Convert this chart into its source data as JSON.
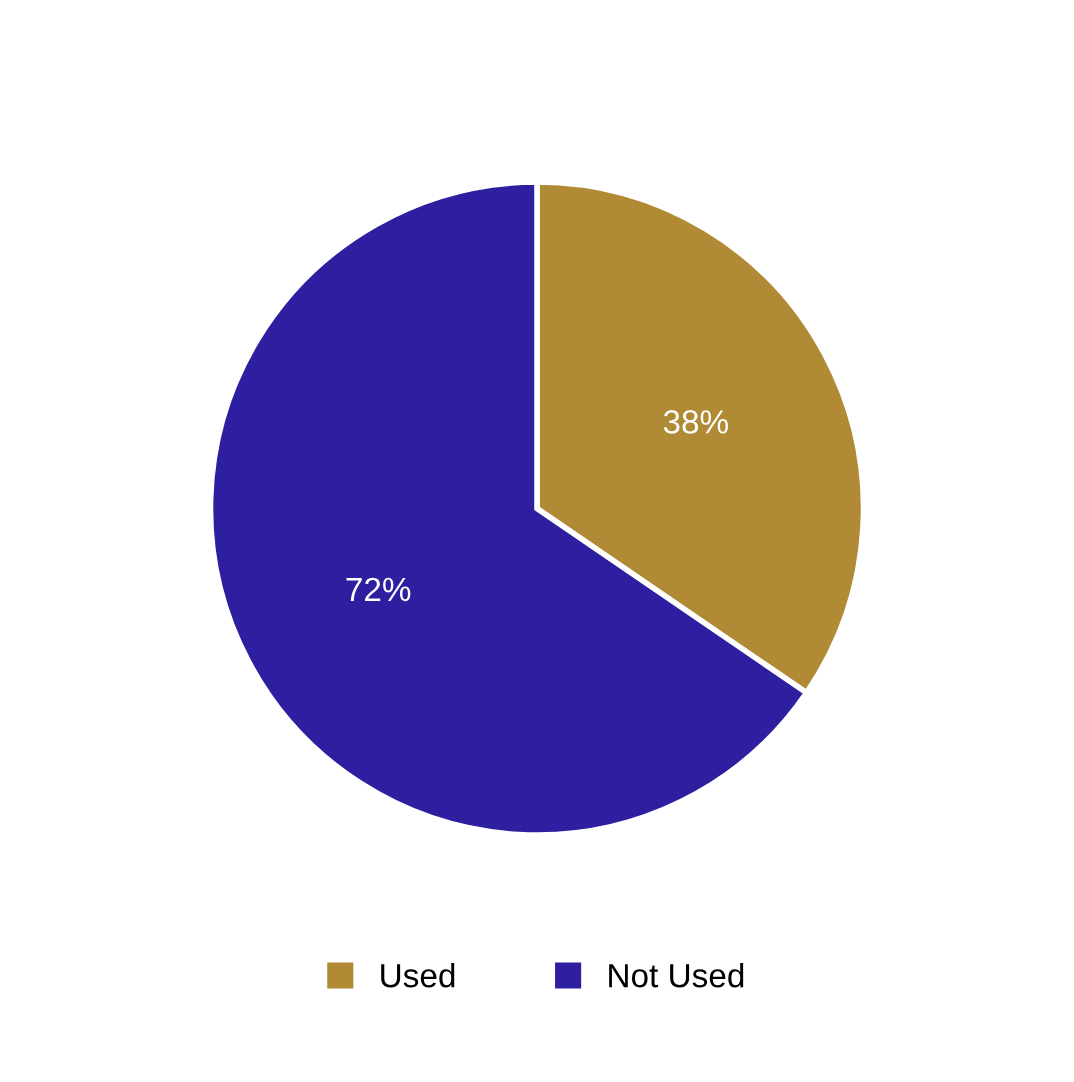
{
  "chart_data": {
    "type": "pie",
    "categories": [
      "Used",
      "Not Used"
    ],
    "values": [
      38,
      72
    ],
    "colors": [
      "#b08a35",
      "#2e1fa0"
    ],
    "value_labels": [
      "38%",
      "72%"
    ],
    "legend": "bottom"
  }
}
